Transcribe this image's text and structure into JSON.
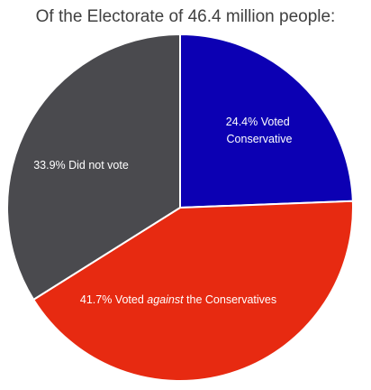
{
  "chart_data": {
    "type": "pie",
    "title": "Of the Electorate of 46.4 million people:",
    "start_angle_deg": 90,
    "direction": "clockwise",
    "slices": [
      {
        "value": 24.4,
        "label_lines": [
          "24.4% Voted",
          "Conservative"
        ],
        "color": "#0c00b3"
      },
      {
        "value": 41.7,
        "label_parts": [
          "41.7% Voted ",
          "against",
          " the Conservatives"
        ],
        "color": "#e72a11"
      },
      {
        "value": 33.9,
        "label_lines": [
          "33.9% Did not vote"
        ],
        "color": "#4a4a4e"
      }
    ]
  }
}
